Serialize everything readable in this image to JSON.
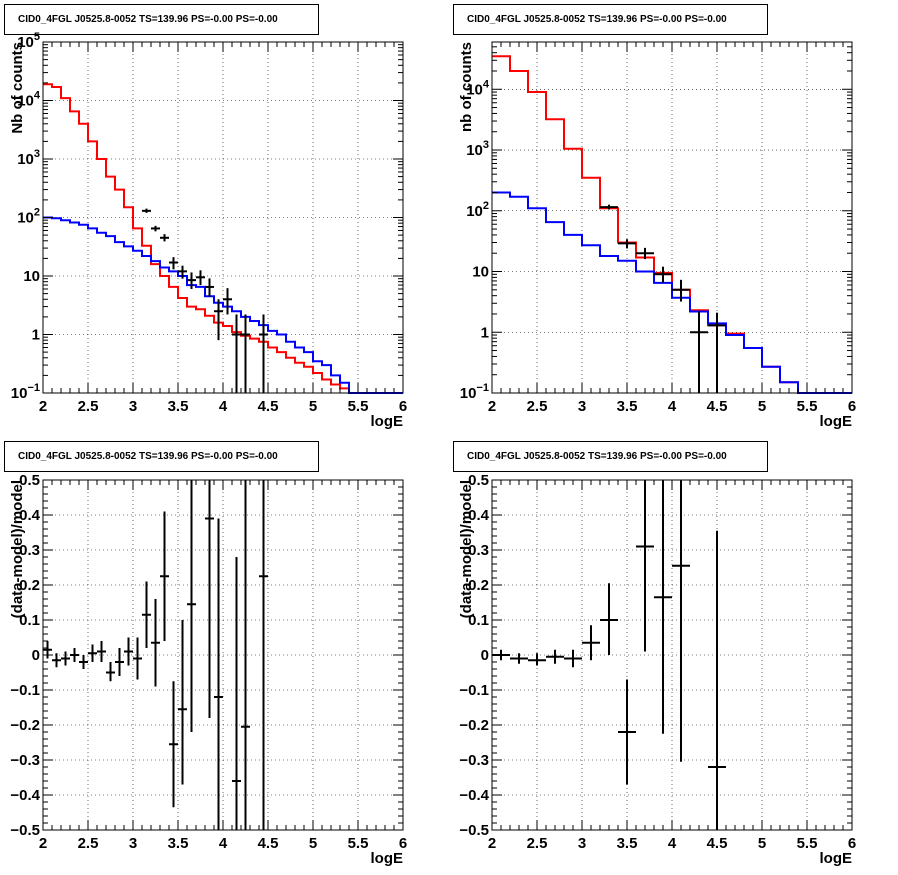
{
  "chart_data": [
    {
      "id": "p1",
      "type": "line",
      "title": "CID0_4FGL J0525.8-0052 TS=139.96 PS=-0.00 PS=-0.00",
      "xlabel": "logE",
      "ylabel": "Nb of counts",
      "xlim": [
        2,
        6
      ],
      "ylim": [
        0.1,
        100000
      ],
      "yscale": "log",
      "grid": true,
      "xticks": [
        "2",
        "2.5",
        "3",
        "3.5",
        "4",
        "4.5",
        "5",
        "5.5",
        "6"
      ],
      "yticks": [
        {
          "value": 0.1,
          "base": "10",
          "exp": "−1"
        },
        {
          "value": 1,
          "label": "1"
        },
        {
          "value": 10,
          "label": "10"
        },
        {
          "value": 100,
          "base": "10",
          "exp": "2"
        },
        {
          "value": 1000,
          "base": "10",
          "exp": "3"
        },
        {
          "value": 10000,
          "base": "10",
          "exp": "4"
        },
        {
          "value": 100000,
          "base": "10",
          "exp": "5"
        }
      ],
      "bin_edges": [
        2,
        2.1,
        2.2,
        2.3,
        2.4,
        2.5,
        2.6,
        2.7,
        2.8,
        2.9,
        3,
        3.1,
        3.2,
        3.3,
        3.4,
        3.5,
        3.6,
        3.7,
        3.8,
        3.9,
        4,
        4.1,
        4.2,
        4.3,
        4.4,
        4.5,
        4.6,
        4.7,
        4.8,
        4.9,
        5,
        5.1,
        5.2,
        5.3,
        5.4,
        5.5,
        5.6,
        5.7,
        5.8,
        5.9,
        6
      ],
      "series": [
        {
          "kind": "step",
          "color": "#ff0000",
          "values": [
            19000,
            17000,
            11000,
            6500,
            4000,
            2000,
            1000,
            500,
            300,
            150,
            65,
            33,
            16,
            10,
            6.5,
            4.2,
            3,
            2.7,
            2.1,
            1.6,
            1.4,
            1.1,
            0.95,
            0.85,
            0.75,
            0.6,
            0.5,
            0.4,
            0.33,
            0.28,
            0.22,
            0.17,
            0.14,
            0.12,
            0.1,
            0.1,
            0.1,
            0.1,
            0.1,
            0.1
          ]
        },
        {
          "kind": "step",
          "color": "#0000ff",
          "values": [
            100,
            97,
            90,
            82,
            75,
            65,
            55,
            48,
            38,
            32,
            27,
            22,
            18,
            14,
            12,
            10,
            7,
            6.5,
            4.5,
            3.5,
            3,
            2.5,
            2,
            1.7,
            1.45,
            1.15,
            1,
            0.75,
            0.6,
            0.5,
            0.35,
            0.3,
            0.2,
            0.15,
            0.1,
            0.1,
            0.1,
            0.1,
            0.1,
            0.1
          ]
        },
        {
          "kind": "errorbar",
          "color": "#000000",
          "points": [
            {
              "x": 3.15,
              "y": 130,
              "lo": 120,
              "hi": 142,
              "xerr": 0.05
            },
            {
              "x": 3.25,
              "y": 65,
              "lo": 58,
              "hi": 72,
              "xerr": 0.05
            },
            {
              "x": 3.35,
              "y": 45,
              "lo": 39,
              "hi": 52,
              "xerr": 0.05
            },
            {
              "x": 3.45,
              "y": 17,
              "lo": 13,
              "hi": 21,
              "xerr": 0.05
            },
            {
              "x": 3.55,
              "y": 12,
              "lo": 9,
              "hi": 15,
              "xerr": 0.05
            },
            {
              "x": 3.65,
              "y": 8.5,
              "lo": 6,
              "hi": 11.5,
              "xerr": 0.05
            },
            {
              "x": 3.75,
              "y": 9.5,
              "lo": 7,
              "hi": 12.5,
              "xerr": 0.05
            },
            {
              "x": 3.85,
              "y": 6.5,
              "lo": 4.4,
              "hi": 9.1,
              "xerr": 0.05
            },
            {
              "x": 3.95,
              "y": 2.5,
              "lo": 0.8,
              "hi": 4,
              "xerr": 0.05
            },
            {
              "x": 4.05,
              "y": 4,
              "lo": 2.2,
              "hi": 6.2,
              "xerr": 0.05
            },
            {
              "x": 4.15,
              "y": 1,
              "lo": 0.1,
              "hi": 2.2,
              "xerr": 0.05
            },
            {
              "x": 4.25,
              "y": 1,
              "lo": 0.1,
              "hi": 2.2,
              "xerr": 0.05
            },
            {
              "x": 4.45,
              "y": 1,
              "lo": 0.1,
              "hi": 2.2,
              "xerr": 0.05
            }
          ]
        }
      ]
    },
    {
      "id": "p2",
      "type": "line",
      "title": "CID0_4FGL J0525.8-0052 TS=139.96 PS=-0.00 PS=-0.00",
      "xlabel": "logE",
      "ylabel": "nb of counts",
      "xlim": [
        2,
        6
      ],
      "ylim": [
        0.1,
        60000
      ],
      "yscale": "log",
      "grid": true,
      "xticks": [
        "2",
        "2.5",
        "3",
        "3.5",
        "4",
        "4.5",
        "5",
        "5.5",
        "6"
      ],
      "yticks": [
        {
          "value": 0.1,
          "base": "10",
          "exp": "−1"
        },
        {
          "value": 1,
          "label": "1"
        },
        {
          "value": 10,
          "label": "10"
        },
        {
          "value": 100,
          "base": "10",
          "exp": "2"
        },
        {
          "value": 1000,
          "base": "10",
          "exp": "3"
        },
        {
          "value": 10000,
          "base": "10",
          "exp": "4"
        }
      ],
      "bin_edges": [
        2,
        2.2,
        2.4,
        2.6,
        2.8,
        3,
        3.2,
        3.4,
        3.6,
        3.8,
        4,
        4.2,
        4.4,
        4.6,
        4.8,
        5,
        5.2,
        5.4,
        5.6,
        5.8,
        6
      ],
      "series": [
        {
          "kind": "step",
          "color": "#ff0000",
          "values": [
            35000,
            20000,
            9000,
            3200,
            1050,
            350,
            110,
            30,
            17,
            9.5,
            5,
            2.3,
            1.3,
            0.95,
            0.55,
            0.27,
            0.15,
            0.1,
            0.1,
            0.1
          ]
        },
        {
          "kind": "step",
          "color": "#0000ff",
          "values": [
            200,
            170,
            110,
            65,
            40,
            27,
            18,
            15,
            10,
            6.5,
            3.7,
            2.2,
            1.4,
            0.9,
            0.55,
            0.27,
            0.15,
            0.1,
            0.1,
            0.1
          ]
        },
        {
          "kind": "errorbar",
          "color": "#000000",
          "points": [
            {
              "x": 3.3,
              "y": 115,
              "lo": 105,
              "hi": 126,
              "xerr": 0.1
            },
            {
              "x": 3.5,
              "y": 29,
              "lo": 24,
              "hi": 34,
              "xerr": 0.1
            },
            {
              "x": 3.7,
              "y": 20,
              "lo": 16,
              "hi": 24.5,
              "xerr": 0.1
            },
            {
              "x": 3.9,
              "y": 9,
              "lo": 6.5,
              "hi": 12,
              "xerr": 0.1
            },
            {
              "x": 4.1,
              "y": 5,
              "lo": 3.2,
              "hi": 7.3,
              "xerr": 0.1
            },
            {
              "x": 4.3,
              "y": 1,
              "lo": 0.1,
              "hi": 2.2,
              "xerr": 0.1
            },
            {
              "x": 4.5,
              "y": 1.3,
              "lo": 0.1,
              "hi": 2.1,
              "xerr": 0.1
            }
          ]
        }
      ]
    },
    {
      "id": "p3",
      "type": "scatter",
      "title": "CID0_4FGL J0525.8-0052 TS=139.96 PS=-0.00 PS=-0.00",
      "xlabel": "logE",
      "ylabel": "(data-model)/model",
      "xlim": [
        2,
        6
      ],
      "ylim": [
        -0.5,
        0.5
      ],
      "yscale": "linear",
      "grid": true,
      "xticks": [
        "2",
        "2.5",
        "3",
        "3.5",
        "4",
        "4.5",
        "5",
        "5.5",
        "6"
      ],
      "yticks": [
        {
          "value": -0.5,
          "label": "−0.5"
        },
        {
          "value": -0.4,
          "label": "−0.4"
        },
        {
          "value": -0.3,
          "label": "−0.3"
        },
        {
          "value": -0.2,
          "label": "−0.2"
        },
        {
          "value": -0.1,
          "label": "−0.1"
        },
        {
          "value": 0,
          "label": "0"
        },
        {
          "value": 0.1,
          "label": "0.1"
        },
        {
          "value": 0.2,
          "label": "0.2"
        },
        {
          "value": 0.3,
          "label": "0.3"
        },
        {
          "value": 0.4,
          "label": "0.4"
        },
        {
          "value": 0.5,
          "label": "0.5"
        }
      ],
      "series": [
        {
          "kind": "errorbar",
          "color": "#000000",
          "points": [
            {
              "x": 2.05,
              "y": 0.015,
              "lo": -0.01,
              "hi": 0.04,
              "xerr": 0.05
            },
            {
              "x": 2.15,
              "y": -0.015,
              "lo": -0.035,
              "hi": 0.005,
              "xerr": 0.05
            },
            {
              "x": 2.25,
              "y": -0.01,
              "lo": -0.03,
              "hi": 0.01,
              "xerr": 0.05
            },
            {
              "x": 2.35,
              "y": 0.0,
              "lo": -0.02,
              "hi": 0.02,
              "xerr": 0.05
            },
            {
              "x": 2.45,
              "y": -0.02,
              "lo": -0.04,
              "hi": 0.0,
              "xerr": 0.05
            },
            {
              "x": 2.55,
              "y": 0.005,
              "lo": -0.02,
              "hi": 0.03,
              "xerr": 0.05
            },
            {
              "x": 2.65,
              "y": 0.01,
              "lo": -0.02,
              "hi": 0.04,
              "xerr": 0.05
            },
            {
              "x": 2.75,
              "y": -0.05,
              "lo": -0.075,
              "hi": -0.02,
              "xerr": 0.05
            },
            {
              "x": 2.85,
              "y": -0.02,
              "lo": -0.06,
              "hi": 0.02,
              "xerr": 0.05
            },
            {
              "x": 2.95,
              "y": 0.01,
              "lo": -0.03,
              "hi": 0.05,
              "xerr": 0.05
            },
            {
              "x": 3.05,
              "y": -0.01,
              "lo": -0.07,
              "hi": 0.05,
              "xerr": 0.05
            },
            {
              "x": 3.15,
              "y": 0.115,
              "lo": 0.02,
              "hi": 0.21,
              "xerr": 0.05
            },
            {
              "x": 3.25,
              "y": 0.035,
              "lo": -0.09,
              "hi": 0.16,
              "xerr": 0.05
            },
            {
              "x": 3.35,
              "y": 0.225,
              "lo": 0.04,
              "hi": 0.41,
              "xerr": 0.05
            },
            {
              "x": 3.45,
              "y": -0.255,
              "lo": -0.435,
              "hi": -0.075,
              "xerr": 0.05
            },
            {
              "x": 3.55,
              "y": -0.155,
              "lo": -0.37,
              "hi": 0.1,
              "xerr": 0.05
            },
            {
              "x": 3.65,
              "y": 0.145,
              "lo": -0.22,
              "hi": 0.5,
              "xerr": 0.05
            },
            {
              "x": 3.85,
              "y": 0.39,
              "lo": -0.18,
              "hi": 0.5,
              "xerr": 0.05
            },
            {
              "x": 3.95,
              "y": -0.12,
              "lo": -0.5,
              "hi": 0.39,
              "xerr": 0.05
            },
            {
              "x": 4.15,
              "y": -0.36,
              "lo": -0.5,
              "hi": 0.28,
              "xerr": 0.05
            },
            {
              "x": 4.25,
              "y": -0.205,
              "lo": -0.5,
              "hi": 0.5,
              "xerr": 0.05
            },
            {
              "x": 4.45,
              "y": 0.225,
              "lo": -0.5,
              "hi": 0.5,
              "xerr": 0.05
            }
          ]
        }
      ]
    },
    {
      "id": "p4",
      "type": "scatter",
      "title": "CID0_4FGL J0525.8-0052 TS=139.96 PS=-0.00 PS=-0.00",
      "xlabel": "logE",
      "ylabel": "(data-model)/model",
      "xlim": [
        2,
        6
      ],
      "ylim": [
        -0.5,
        0.5
      ],
      "yscale": "linear",
      "grid": true,
      "xticks": [
        "2",
        "2.5",
        "3",
        "3.5",
        "4",
        "4.5",
        "5",
        "5.5",
        "6"
      ],
      "yticks": [
        {
          "value": -0.5,
          "label": "−0.5"
        },
        {
          "value": -0.4,
          "label": "−0.4"
        },
        {
          "value": -0.3,
          "label": "−0.3"
        },
        {
          "value": -0.2,
          "label": "−0.2"
        },
        {
          "value": -0.1,
          "label": "−0.1"
        },
        {
          "value": 0,
          "label": "0"
        },
        {
          "value": 0.1,
          "label": "0.1"
        },
        {
          "value": 0.2,
          "label": "0.2"
        },
        {
          "value": 0.3,
          "label": "0.3"
        },
        {
          "value": 0.4,
          "label": "0.4"
        },
        {
          "value": 0.5,
          "label": "0.5"
        }
      ],
      "series": [
        {
          "kind": "errorbar",
          "color": "#000000",
          "points": [
            {
              "x": 2.1,
              "y": 0.0,
              "lo": -0.015,
              "hi": 0.015,
              "xerr": 0.1
            },
            {
              "x": 2.3,
              "y": -0.01,
              "lo": -0.025,
              "hi": 0.005,
              "xerr": 0.1
            },
            {
              "x": 2.5,
              "y": -0.015,
              "lo": -0.03,
              "hi": 0.005,
              "xerr": 0.1
            },
            {
              "x": 2.7,
              "y": -0.005,
              "lo": -0.025,
              "hi": 0.015,
              "xerr": 0.1
            },
            {
              "x": 2.9,
              "y": -0.01,
              "lo": -0.035,
              "hi": 0.015,
              "xerr": 0.1
            },
            {
              "x": 3.1,
              "y": 0.035,
              "lo": -0.015,
              "hi": 0.085,
              "xerr": 0.1
            },
            {
              "x": 3.3,
              "y": 0.1,
              "lo": 0.0,
              "hi": 0.205,
              "xerr": 0.1
            },
            {
              "x": 3.5,
              "y": -0.22,
              "lo": -0.37,
              "hi": -0.07,
              "xerr": 0.1
            },
            {
              "x": 3.7,
              "y": 0.31,
              "lo": 0.01,
              "hi": 0.5,
              "xerr": 0.1
            },
            {
              "x": 3.9,
              "y": 0.165,
              "lo": -0.225,
              "hi": 0.5,
              "xerr": 0.1
            },
            {
              "x": 4.1,
              "y": 0.255,
              "lo": -0.305,
              "hi": 0.5,
              "xerr": 0.1
            },
            {
              "x": 4.5,
              "y": -0.32,
              "lo": -0.5,
              "hi": 0.355,
              "xerr": 0.1
            }
          ]
        }
      ]
    }
  ]
}
